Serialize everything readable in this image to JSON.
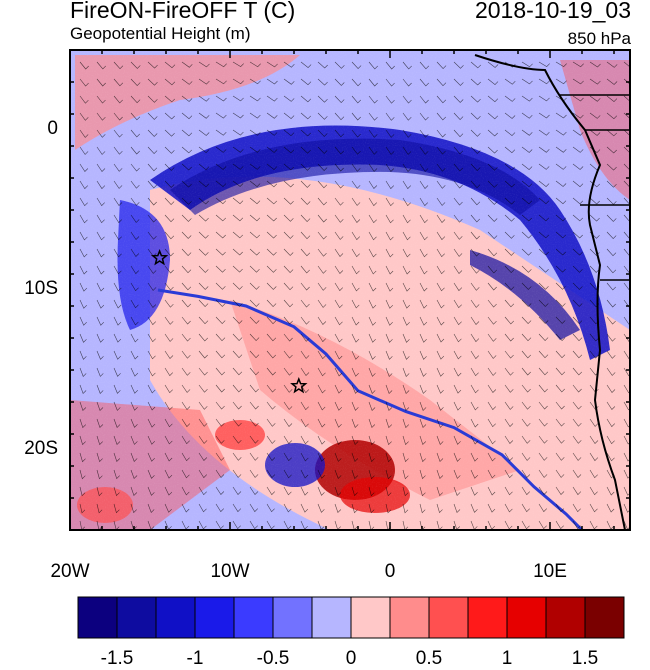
{
  "title": "FireON-FireOFF T (C)",
  "subtitle": "Geopotential Height (m)",
  "date": "2018-10-19_03",
  "level": "850 hPa",
  "lat_labels": [
    {
      "value": 0,
      "text": "0"
    },
    {
      "value": -10,
      "text": "10S"
    },
    {
      "value": -20,
      "text": "20S"
    }
  ],
  "lon_labels": [
    {
      "value": -20,
      "text": "20W"
    },
    {
      "value": -10,
      "text": "10W"
    },
    {
      "value": 0,
      "text": "0"
    },
    {
      "value": 10,
      "text": "10E"
    }
  ],
  "colorbar": {
    "levels": [
      -1.75,
      -1.5,
      -1.25,
      -1,
      -0.75,
      -0.5,
      -0.25,
      0,
      0.25,
      0.5,
      0.75,
      1,
      1.25,
      1.5,
      1.75
    ],
    "colors": [
      "#0c007f",
      "#0e0ca0",
      "#1010c6",
      "#1a1ae9",
      "#3b3bff",
      "#7272ff",
      "#b6b6ff",
      "#ffc8c8",
      "#ff8c8c",
      "#ff5050",
      "#ff1a1a",
      "#e60000",
      "#b00000",
      "#7a0000"
    ],
    "label_values": [
      {
        "text": "-1.5",
        "value": -1.5
      },
      {
        "text": "-1",
        "value": -1
      },
      {
        "text": "-0.5",
        "value": -0.5
      },
      {
        "text": "0",
        "value": 0
      },
      {
        "text": "0.5",
        "value": 0.5
      },
      {
        "text": "1",
        "value": 1
      },
      {
        "text": "1.5",
        "value": 1.5
      }
    ]
  },
  "map": {
    "lon_range": [
      -20,
      15
    ],
    "lat_range": [
      -25,
      5
    ],
    "stars": [
      {
        "lon": -14.4,
        "lat": -8.0,
        "name": "ascension-star"
      },
      {
        "lon": -5.7,
        "lat": -16.0,
        "name": "st-helena-star"
      }
    ],
    "contour": [
      [
        -14.5,
        -10.0
      ],
      [
        -12,
        -10.4
      ],
      [
        -9,
        -11.0
      ],
      [
        -6,
        -12.3
      ],
      [
        -4,
        -14.0
      ],
      [
        -2,
        -16.3
      ],
      [
        1,
        -17.6
      ],
      [
        4,
        -18.6
      ],
      [
        7,
        -20.3
      ],
      [
        9,
        -22.3
      ],
      [
        11,
        -24.0
      ],
      [
        12,
        -25.0
      ]
    ]
  },
  "colors": {
    "contour": "#2a3bd6",
    "coast": "#000000"
  }
}
